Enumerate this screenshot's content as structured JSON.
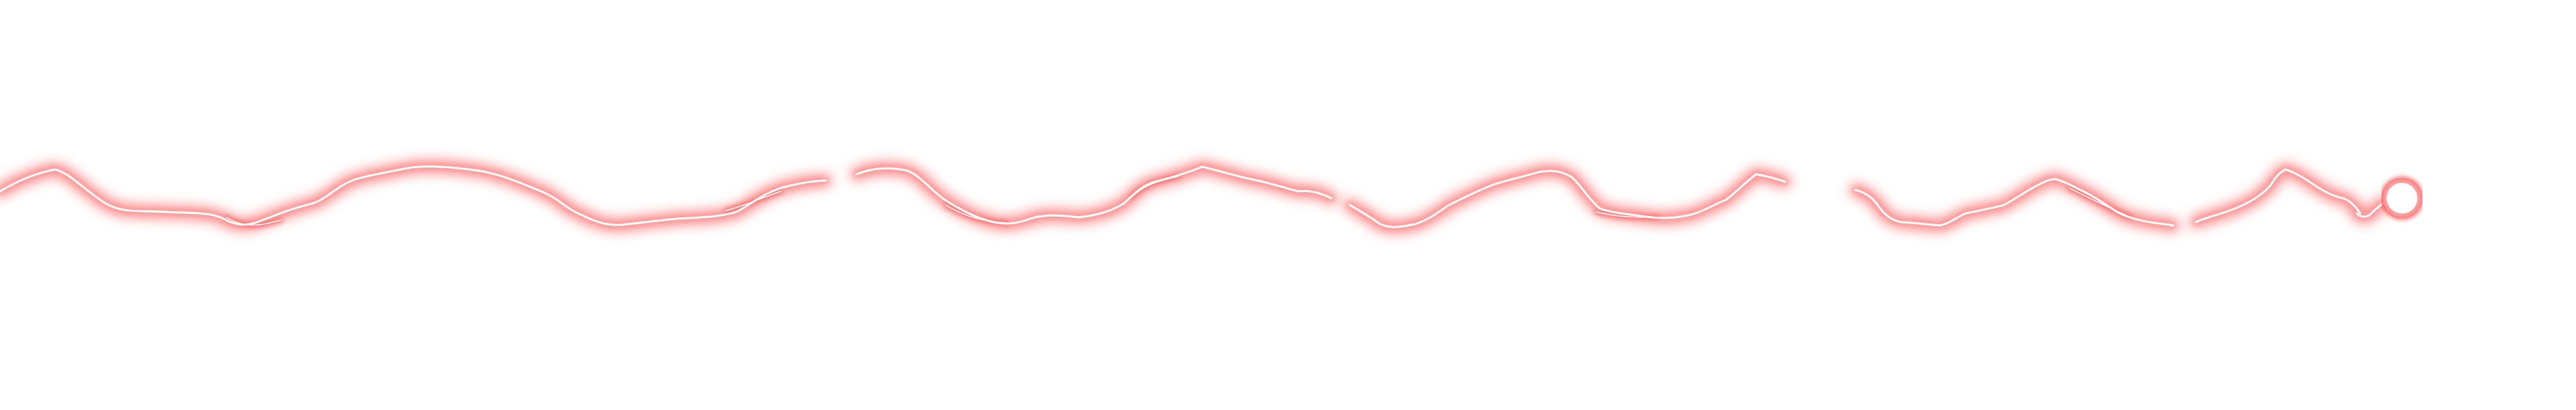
{
  "canvas": {
    "background": "#ffffff"
  },
  "effect": {
    "kind": "electric-arc",
    "glow_color": "#ff5a5a",
    "mid_color": "#ff9a9a",
    "core_color": "#ffffff",
    "segments": 7,
    "endpoint_shape": "ring"
  }
}
